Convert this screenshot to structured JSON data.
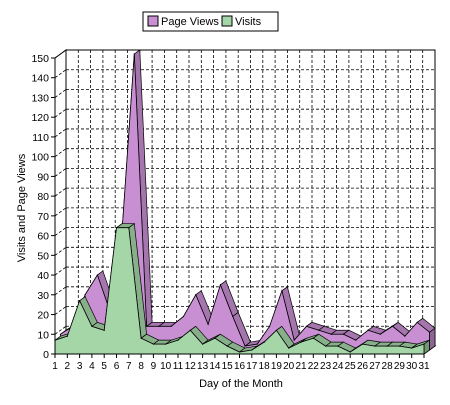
{
  "chart_data": {
    "type": "area",
    "title": "",
    "xlabel": "Day of the Month",
    "ylabel": "Visits and Page Views",
    "categories": [
      "1",
      "2",
      "3",
      "4",
      "5",
      "6",
      "7",
      "8",
      "9",
      "10",
      "11",
      "12",
      "13",
      "14",
      "15",
      "16",
      "17",
      "18",
      "19",
      "20",
      "21",
      "22",
      "23",
      "24",
      "25",
      "26",
      "27",
      "28",
      "29",
      "30",
      "31"
    ],
    "yticks": [
      "0",
      "10",
      "20",
      "30",
      "40",
      "50",
      "60",
      "70",
      "80",
      "90",
      "100",
      "110",
      "120",
      "130",
      "140",
      "150"
    ],
    "ylim": [
      0,
      150
    ],
    "grid": true,
    "legend_position": "top-center",
    "series": [
      {
        "name": "Page Views",
        "color": "#c98fd3",
        "values": [
          8,
          12,
          28,
          38,
          20,
          60,
          150,
          12,
          12,
          12,
          17,
          28,
          13,
          33,
          17,
          2,
          3,
          12,
          30,
          5,
          12,
          10,
          8,
          8,
          5,
          10,
          8,
          12,
          7,
          14,
          9
        ]
      },
      {
        "name": "Visits",
        "color": "#a5d6a7",
        "values": [
          7,
          9,
          27,
          14,
          12,
          64,
          64,
          8,
          5,
          5,
          7,
          12,
          5,
          8,
          4,
          1,
          2,
          6,
          12,
          3,
          6,
          8,
          4,
          4,
          1,
          5,
          4,
          4,
          4,
          3,
          5
        ]
      }
    ]
  }
}
